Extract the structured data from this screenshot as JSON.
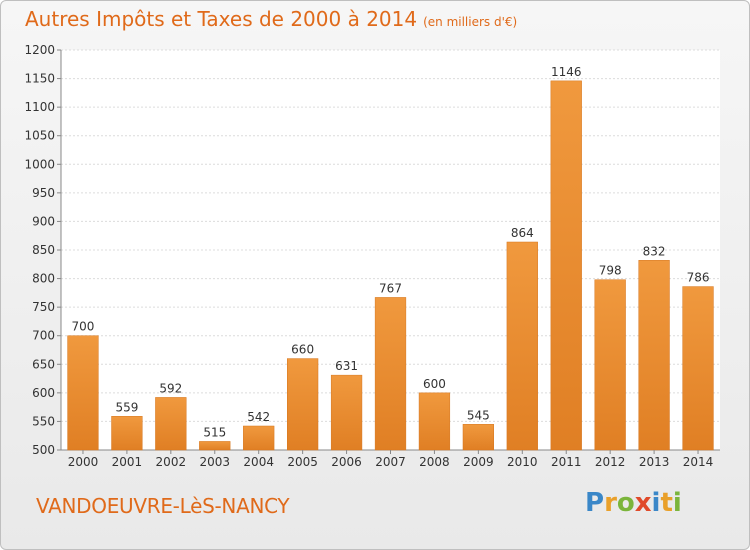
{
  "title": "Autres Impôts et Taxes de 2000 à 2014",
  "unit": "(en milliers d'€)",
  "location": "VANDOEUVRE-LèS-NANCY",
  "logo": {
    "letters": [
      "P",
      "r",
      "o",
      "x",
      "i",
      "t",
      "i"
    ],
    "colors": [
      "#3a87c8",
      "#e9a02a",
      "#7bb53b",
      "#e04a2a",
      "#3a87c8",
      "#e9a02a",
      "#7bb53b"
    ]
  },
  "colors": {
    "bar": "#f0993e",
    "bar_dark": "#e07f24",
    "text": "#e06a1a"
  },
  "chart_data": {
    "type": "bar",
    "categories": [
      "2000",
      "2001",
      "2002",
      "2003",
      "2004",
      "2005",
      "2006",
      "2007",
      "2008",
      "2009",
      "2010",
      "2011",
      "2012",
      "2013",
      "2014"
    ],
    "values": [
      700,
      559,
      592,
      515,
      542,
      660,
      631,
      767,
      600,
      545,
      864,
      1146,
      798,
      832,
      786
    ],
    "ylim": [
      500,
      1200
    ],
    "yticks": [
      500,
      550,
      600,
      650,
      700,
      750,
      800,
      850,
      900,
      950,
      1000,
      1050,
      1100,
      1150,
      1200
    ],
    "grid": true
  }
}
